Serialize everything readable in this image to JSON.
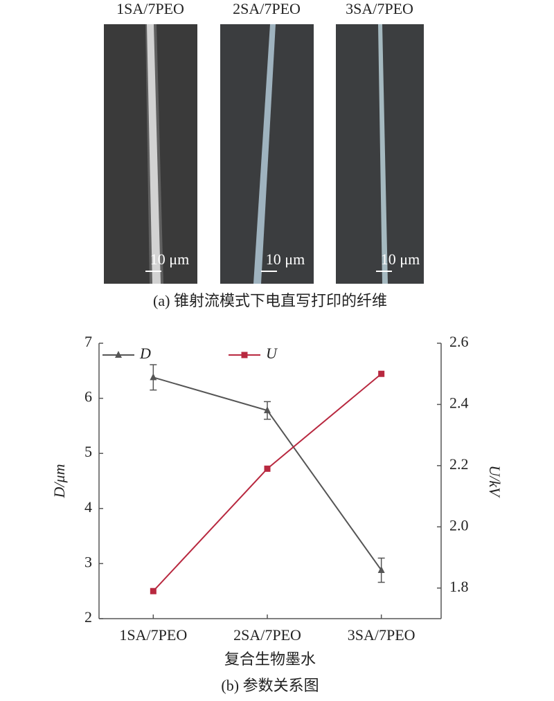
{
  "panel_a": {
    "labels": [
      "1SA/7PEO",
      "2SA/7PEO",
      "3SA/7PEO"
    ],
    "scale_bars": [
      "10 μm",
      "10 μm",
      "10 μm"
    ],
    "caption": "(a) 锥射流模式下电直写打印的纤维"
  },
  "chart_data": {
    "type": "line",
    "categories": [
      "1SA/7PEO",
      "2SA/7PEO",
      "3SA/7PEO"
    ],
    "series": [
      {
        "name": "D",
        "color": "#555555",
        "marker": "triangle",
        "values": [
          6.38,
          5.78,
          2.88
        ],
        "errors": [
          0.23,
          0.16,
          0.22
        ]
      },
      {
        "name": "U",
        "color": "#b8283f",
        "marker": "square",
        "axis": "y2",
        "values": [
          1.79,
          2.19,
          2.5
        ]
      }
    ],
    "ylabel": "D/μm",
    "y2label": "U/kV",
    "xlabel": "复合生物墨水",
    "ylim": [
      2,
      7
    ],
    "yticks": [
      2,
      3,
      4,
      5,
      6,
      7
    ],
    "y2lim": [
      1.7,
      2.6
    ],
    "y2ticks": [
      1.8,
      {
        "value": 2,
        "label": "2.0"
      },
      2.2,
      2.4,
      2.6
    ],
    "caption": "(b) 参数关系图"
  }
}
